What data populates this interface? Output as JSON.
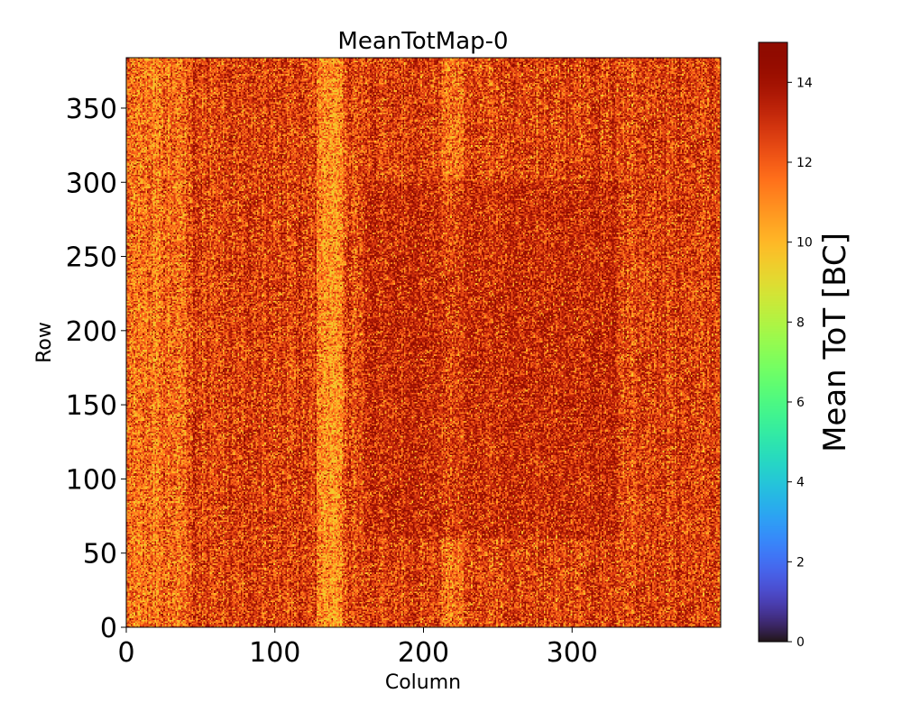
{
  "chart_data": {
    "type": "heatmap",
    "title": "MeanTotMap-0",
    "xlabel": "Column",
    "ylabel": "Row",
    "xlim": [
      0,
      400
    ],
    "ylim": [
      0,
      384
    ],
    "n_columns": 400,
    "n_rows": 384,
    "x_ticks": [
      0,
      100,
      200,
      300
    ],
    "y_ticks": [
      0,
      50,
      100,
      150,
      200,
      250,
      300,
      350
    ],
    "colorbar": {
      "label": "Mean ToT [BC]",
      "range": [
        0,
        15
      ],
      "ticks": [
        0,
        2,
        4,
        6,
        8,
        10,
        12,
        14
      ],
      "colormap": "turbo"
    },
    "value_summary": {
      "typical_mean": 12.6,
      "typical_spread": 1.3,
      "min_observed": 9.5,
      "max_observed": 15.0,
      "brighter_column_bands": [
        {
          "from": 0,
          "to": 40,
          "mean": 11.6
        },
        {
          "from": 128,
          "to": 145,
          "mean": 10.9
        },
        {
          "from": 212,
          "to": 226,
          "mean": 11.5
        }
      ],
      "darker_region": {
        "columns": [
          160,
          330
        ],
        "rows": [
          60,
          300
        ],
        "mean": 13.4
      }
    }
  }
}
